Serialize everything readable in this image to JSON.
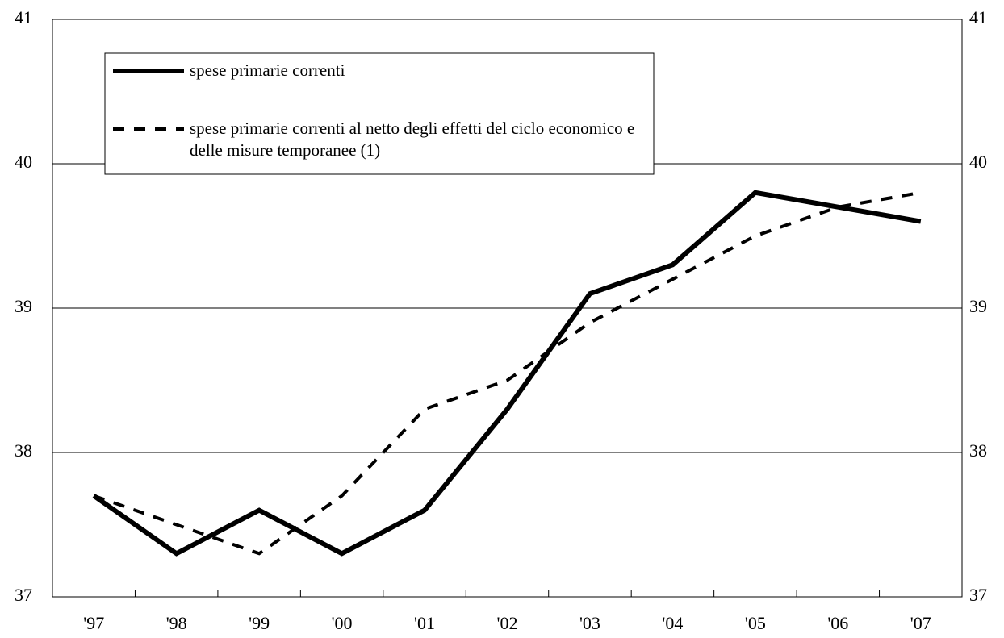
{
  "chart_data": {
    "type": "line",
    "categories": [
      "'97",
      "'98",
      "'99",
      "'00",
      "'01",
      "'02",
      "'03",
      "'04",
      "'05",
      "'06",
      "'07"
    ],
    "series": [
      {
        "name": "spese primarie correnti",
        "color": "#000000",
        "style": "solid",
        "values": [
          37.7,
          37.3,
          37.6,
          37.3,
          37.6,
          38.3,
          39.1,
          39.3,
          39.8,
          39.7,
          39.6
        ]
      },
      {
        "name": "spese primarie correnti al netto degli effetti del ciclo economico e delle misure temporanee (1)",
        "color": "#000000",
        "style": "dashed",
        "values": [
          37.7,
          37.5,
          37.3,
          37.7,
          38.3,
          38.5,
          38.9,
          39.2,
          39.5,
          39.7,
          39.8
        ]
      }
    ],
    "ylim": [
      37,
      41
    ],
    "yticks": [
      37,
      38,
      39,
      40,
      41
    ],
    "grid": true,
    "legend": "upper left"
  }
}
